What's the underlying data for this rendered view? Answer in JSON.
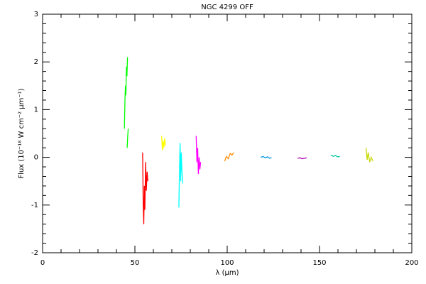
{
  "chart_data": {
    "type": "line",
    "title": "NGC 4299 OFF",
    "x_label": "λ (μm)",
    "y_label": "Flux (10⁻¹⁸ W cm⁻² μm⁻¹)",
    "xlim": [
      0,
      200
    ],
    "xticks": [
      0,
      50,
      100,
      150,
      200
    ],
    "ylim": [
      -2,
      3
    ],
    "yticks": [
      -2,
      -1,
      0,
      1,
      2,
      3
    ],
    "series": [
      {
        "color": "#00ff00",
        "x": [
          44.3,
          44.6,
          44.9,
          45.1,
          45.4,
          45.7,
          46.0,
          45.5,
          45.8,
          46.1,
          46.4
        ],
        "values": [
          0.6,
          1.2,
          1.5,
          1.3,
          1.9,
          1.7,
          2.1,
          null,
          0.2,
          0.45,
          0.6
        ]
      },
      {
        "color": "#ff0000",
        "x": [
          54.2,
          54.5,
          54.8,
          55.1,
          55.4,
          55.8,
          56.2,
          56.6,
          57.0
        ],
        "values": [
          0.1,
          -1.0,
          -1.4,
          -0.6,
          -1.1,
          -0.1,
          -0.7,
          -0.3,
          -0.5
        ]
      },
      {
        "color": "#ffff00",
        "x": [
          64.5,
          64.9,
          65.3,
          65.7,
          66.1,
          66.5
        ],
        "values": [
          0.45,
          0.15,
          0.35,
          0.2,
          0.4,
          0.25
        ]
      },
      {
        "color": "#00ffff",
        "x": [
          73.8,
          74.2,
          74.5,
          74.8,
          75.1,
          75.5,
          75.9
        ],
        "values": [
          -1.05,
          -0.2,
          0.3,
          -0.5,
          0.1,
          -0.3,
          -0.55
        ]
      },
      {
        "color": "#ff00ff",
        "x": [
          83.2,
          83.6,
          84.0,
          84.4,
          84.8,
          85.2,
          85.6
        ],
        "values": [
          0.45,
          -0.1,
          0.2,
          -0.35,
          0.0,
          -0.25,
          -0.1
        ]
      },
      {
        "color": "#ff8c00",
        "x": [
          98.6,
          99.6,
          100.6,
          101.6,
          102.6,
          103.6
        ],
        "values": [
          -0.08,
          0.02,
          -0.03,
          0.08,
          0.05,
          0.1
        ]
      },
      {
        "color": "#0096e6",
        "x": [
          118.2,
          119.4,
          120.6,
          121.8,
          123.0,
          124.0
        ],
        "values": [
          0.0,
          0.02,
          -0.01,
          0.01,
          -0.02,
          0.0
        ]
      },
      {
        "color": "#b000b0",
        "x": [
          138.2,
          139.4,
          140.6,
          141.8,
          143.0
        ],
        "values": [
          -0.02,
          -0.01,
          -0.03,
          -0.02,
          -0.01
        ]
      },
      {
        "color": "#00c8a0",
        "x": [
          156.2,
          157.4,
          158.6,
          159.8,
          161.0
        ],
        "values": [
          0.05,
          0.02,
          0.04,
          0.01,
          0.02
        ]
      },
      {
        "color": "#c8d800",
        "x": [
          175.2,
          175.8,
          176.4,
          177.2,
          178.0,
          179.0
        ],
        "values": [
          0.2,
          -0.05,
          0.1,
          -0.1,
          0.0,
          -0.08
        ]
      }
    ]
  }
}
